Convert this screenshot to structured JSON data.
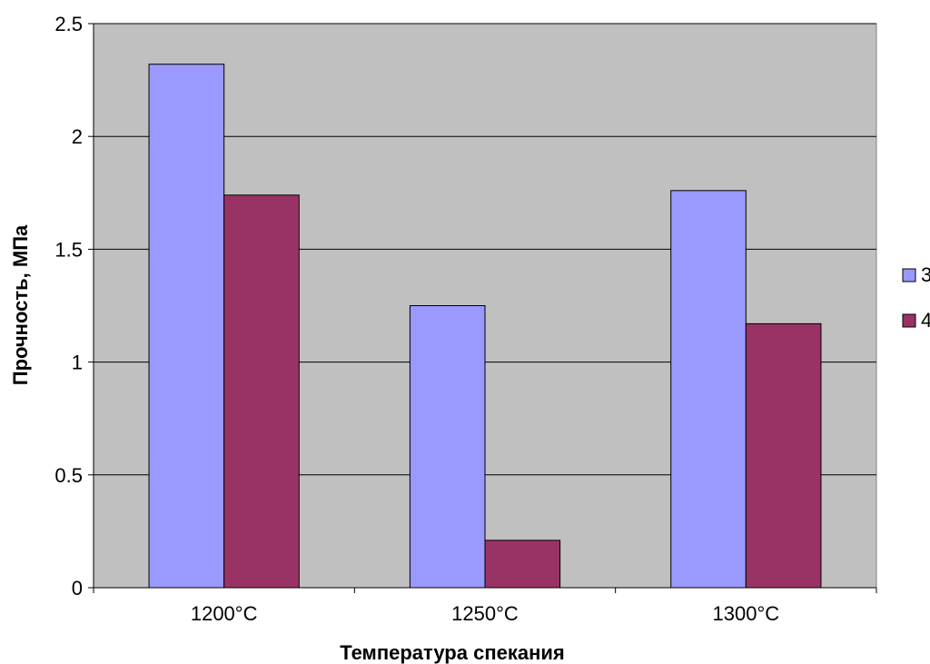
{
  "chart_data": {
    "type": "bar",
    "title": "",
    "xlabel": "Температура спекания",
    "ylabel": "Прочность, МПа",
    "categories": [
      "1200°C",
      "1250°C",
      "1300°C"
    ],
    "series": [
      {
        "name": "3",
        "values": [
          2.32,
          1.25,
          1.76
        ],
        "color": "#9999ff"
      },
      {
        "name": "4",
        "values": [
          1.74,
          0.21,
          1.17
        ],
        "color": "#993366"
      }
    ],
    "ylim": [
      0,
      2.5
    ],
    "yticks": [
      "0",
      "0.5",
      "1",
      "1.5",
      "2",
      "2.5"
    ],
    "ytick_values": [
      0,
      0.5,
      1,
      1.5,
      2,
      2.5
    ],
    "grid": true,
    "legend_position": "right",
    "plot_background": "#c0c0c0"
  }
}
